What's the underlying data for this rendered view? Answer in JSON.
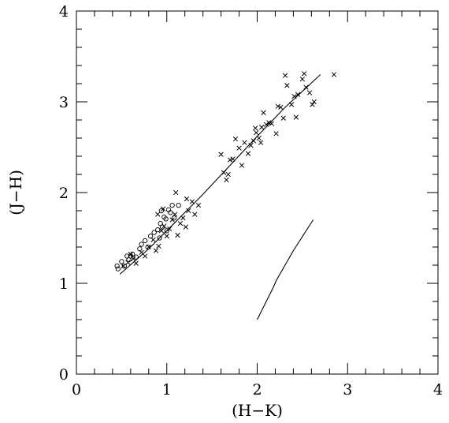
{
  "chart_data": {
    "type": "scatter",
    "title": "",
    "xlabel": "(H−K)",
    "ylabel": "(J−H)",
    "xlim": [
      0,
      4
    ],
    "ylim": [
      0,
      4
    ],
    "x_ticks": [
      0,
      1,
      2,
      3,
      4
    ],
    "y_ticks": [
      0,
      1,
      2,
      3,
      4
    ],
    "x_tick_labels": [
      "0",
      "1",
      "2",
      "3",
      "4"
    ],
    "y_tick_labels": [
      "0",
      "1",
      "2",
      "3",
      "4"
    ],
    "minor_tick_step": 0.2,
    "grid": false,
    "series": [
      {
        "marker": "circle",
        "points": [
          [
            0.45,
            1.19
          ],
          [
            0.46,
            1.16
          ],
          [
            0.5,
            1.24
          ],
          [
            0.53,
            1.19
          ],
          [
            0.56,
            1.3
          ],
          [
            0.58,
            1.26
          ],
          [
            0.6,
            1.3
          ],
          [
            0.62,
            1.32
          ],
          [
            0.66,
            1.29
          ],
          [
            0.7,
            1.38
          ],
          [
            0.72,
            1.43
          ],
          [
            0.76,
            1.47
          ],
          [
            0.79,
            1.4
          ],
          [
            0.82,
            1.52
          ],
          [
            0.86,
            1.56
          ],
          [
            0.9,
            1.59
          ],
          [
            0.92,
            1.5
          ],
          [
            0.93,
            1.66
          ],
          [
            0.95,
            1.62
          ],
          [
            0.97,
            1.73
          ],
          [
            0.99,
            1.71
          ],
          [
            1.0,
            1.58
          ],
          [
            1.02,
            1.81
          ],
          [
            1.04,
            1.78
          ],
          [
            1.06,
            1.86
          ],
          [
            0.94,
            1.8
          ],
          [
            1.08,
            1.72
          ],
          [
            1.13,
            1.86
          ]
        ]
      },
      {
        "marker": "cross",
        "points": [
          [
            0.52,
            1.19
          ],
          [
            0.57,
            1.23
          ],
          [
            0.6,
            1.32
          ],
          [
            0.63,
            1.27
          ],
          [
            0.66,
            1.22
          ],
          [
            0.72,
            1.34
          ],
          [
            0.76,
            1.3
          ],
          [
            0.8,
            1.4
          ],
          [
            0.85,
            1.48
          ],
          [
            0.88,
            1.36
          ],
          [
            0.91,
            1.41
          ],
          [
            0.94,
            1.58
          ],
          [
            0.97,
            1.63
          ],
          [
            1.0,
            1.52
          ],
          [
            1.03,
            1.6
          ],
          [
            1.06,
            1.7
          ],
          [
            1.09,
            1.76
          ],
          [
            1.12,
            1.53
          ],
          [
            1.15,
            1.66
          ],
          [
            1.18,
            1.72
          ],
          [
            1.21,
            1.62
          ],
          [
            1.24,
            1.8
          ],
          [
            1.28,
            1.9
          ],
          [
            1.31,
            1.76
          ],
          [
            1.35,
            1.86
          ],
          [
            0.9,
            1.76
          ],
          [
            0.96,
            1.82
          ],
          [
            1.1,
            2.0
          ],
          [
            1.22,
            1.93
          ],
          [
            1.6,
            2.42
          ],
          [
            1.63,
            2.22
          ],
          [
            1.66,
            2.14
          ],
          [
            1.68,
            2.2
          ],
          [
            1.73,
            2.37
          ],
          [
            1.76,
            2.59
          ],
          [
            1.8,
            2.49
          ],
          [
            1.83,
            2.3
          ],
          [
            1.86,
            2.55
          ],
          [
            1.9,
            2.43
          ],
          [
            1.93,
            2.52
          ],
          [
            1.96,
            2.57
          ],
          [
            1.99,
            2.66
          ],
          [
            2.02,
            2.6
          ],
          [
            2.05,
            2.72
          ],
          [
            2.07,
            2.88
          ],
          [
            2.1,
            2.75
          ],
          [
            2.13,
            2.77
          ],
          [
            2.16,
            2.76
          ],
          [
            2.21,
            2.65
          ],
          [
            2.23,
            2.95
          ],
          [
            2.26,
            2.94
          ],
          [
            2.29,
            2.82
          ],
          [
            2.31,
            3.29
          ],
          [
            2.33,
            3.18
          ],
          [
            2.38,
            2.97
          ],
          [
            2.41,
            3.06
          ],
          [
            2.45,
            3.08
          ],
          [
            2.5,
            3.25
          ],
          [
            2.52,
            3.31
          ],
          [
            2.54,
            3.16
          ],
          [
            2.58,
            3.1
          ],
          [
            2.61,
            2.97
          ],
          [
            2.63,
            3.0
          ],
          [
            2.43,
            2.83
          ],
          [
            2.04,
            2.55
          ],
          [
            2.85,
            3.3
          ],
          [
            1.7,
            2.36
          ],
          [
            1.98,
            2.71
          ]
        ]
      }
    ],
    "lines": [
      {
        "points": [
          [
            0.48,
            1.1
          ],
          [
            0.8,
            1.38
          ],
          [
            1.1,
            1.68
          ],
          [
            1.4,
            1.98
          ],
          [
            1.7,
            2.3
          ],
          [
            2.0,
            2.62
          ],
          [
            2.3,
            2.93
          ],
          [
            2.7,
            3.3
          ]
        ]
      },
      {
        "points": [
          [
            2.0,
            0.6
          ],
          [
            2.18,
            0.96
          ],
          [
            2.21,
            1.03
          ],
          [
            2.4,
            1.36
          ],
          [
            2.62,
            1.7
          ]
        ]
      }
    ]
  }
}
